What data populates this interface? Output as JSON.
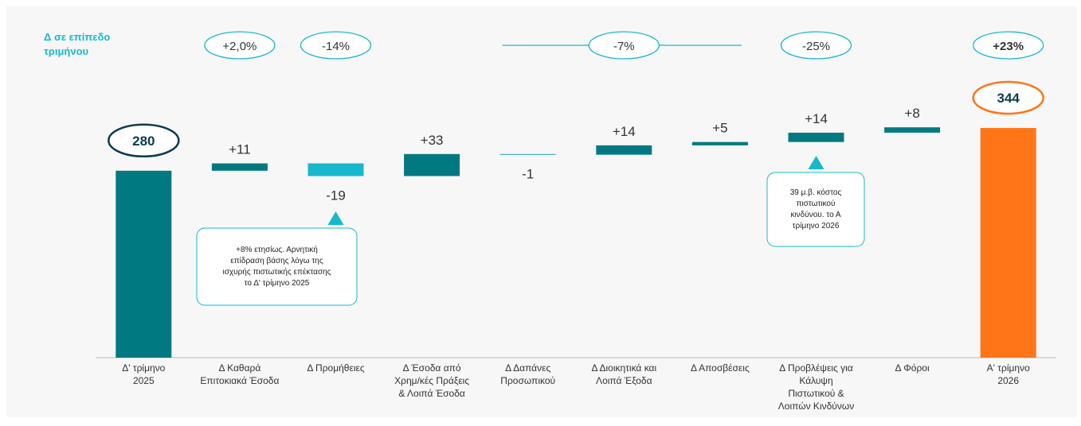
{
  "chart_data": {
    "type": "waterfall",
    "heading": "Δ σε επίπεδο\nτριμήνου",
    "categories": [
      "Δ' τρίμηνο\n2025",
      "Δ Καθαρά\nΕπιτοκιακά Έσοδα",
      "Δ Προμήθειες",
      "Δ Έσοδα από\nΧρημ/κές Πράξεις\n& Λοιπά Έσοδα",
      "Δ Δαπάνες\nΠροσωπικού",
      "Δ Διοικητικά και\nΛοιπά Έξοδα",
      "Δ Αποσβέσεις",
      "Δ Προβλέψεις για\nΚάλυψη\nΠιστωτικού &\nΛοιπών Κινδύνων",
      "Δ Φόροι",
      "Α' τρίμηνο\n2026"
    ],
    "values": [
      280,
      11,
      -19,
      33,
      -1,
      14,
      5,
      14,
      8,
      344
    ],
    "value_labels": [
      "280",
      "+11",
      "-19",
      "+33",
      "-1",
      "+14",
      "+5",
      "+14",
      "+8",
      "344"
    ],
    "colors": [
      "#007a80",
      "#007a80",
      "#17b8cc",
      "#007a80",
      "#1aa3b0",
      "#007a80",
      "#007a80",
      "#007a80",
      "#007a80",
      "#ff7518"
    ],
    "deltas": [
      null,
      "+2,0%",
      "-14%",
      null,
      null,
      "-7%",
      null,
      "-25%",
      null,
      "+23%"
    ],
    "annotations": [
      {
        "category": 2,
        "text": "+8% ετησίως. Αρνητική\nεπίδραση βάσης λόγω της\nισχυρής πιστωτικής επέκτασης\nτο Δ' τρίμηνο 2025"
      },
      {
        "category": 7,
        "text": "39 μ.β. κόστος\nπιστωτικού\nκινδύνου. το Α\nτρίμηνο 2026"
      }
    ],
    "ylim": [
      0,
      400
    ]
  }
}
